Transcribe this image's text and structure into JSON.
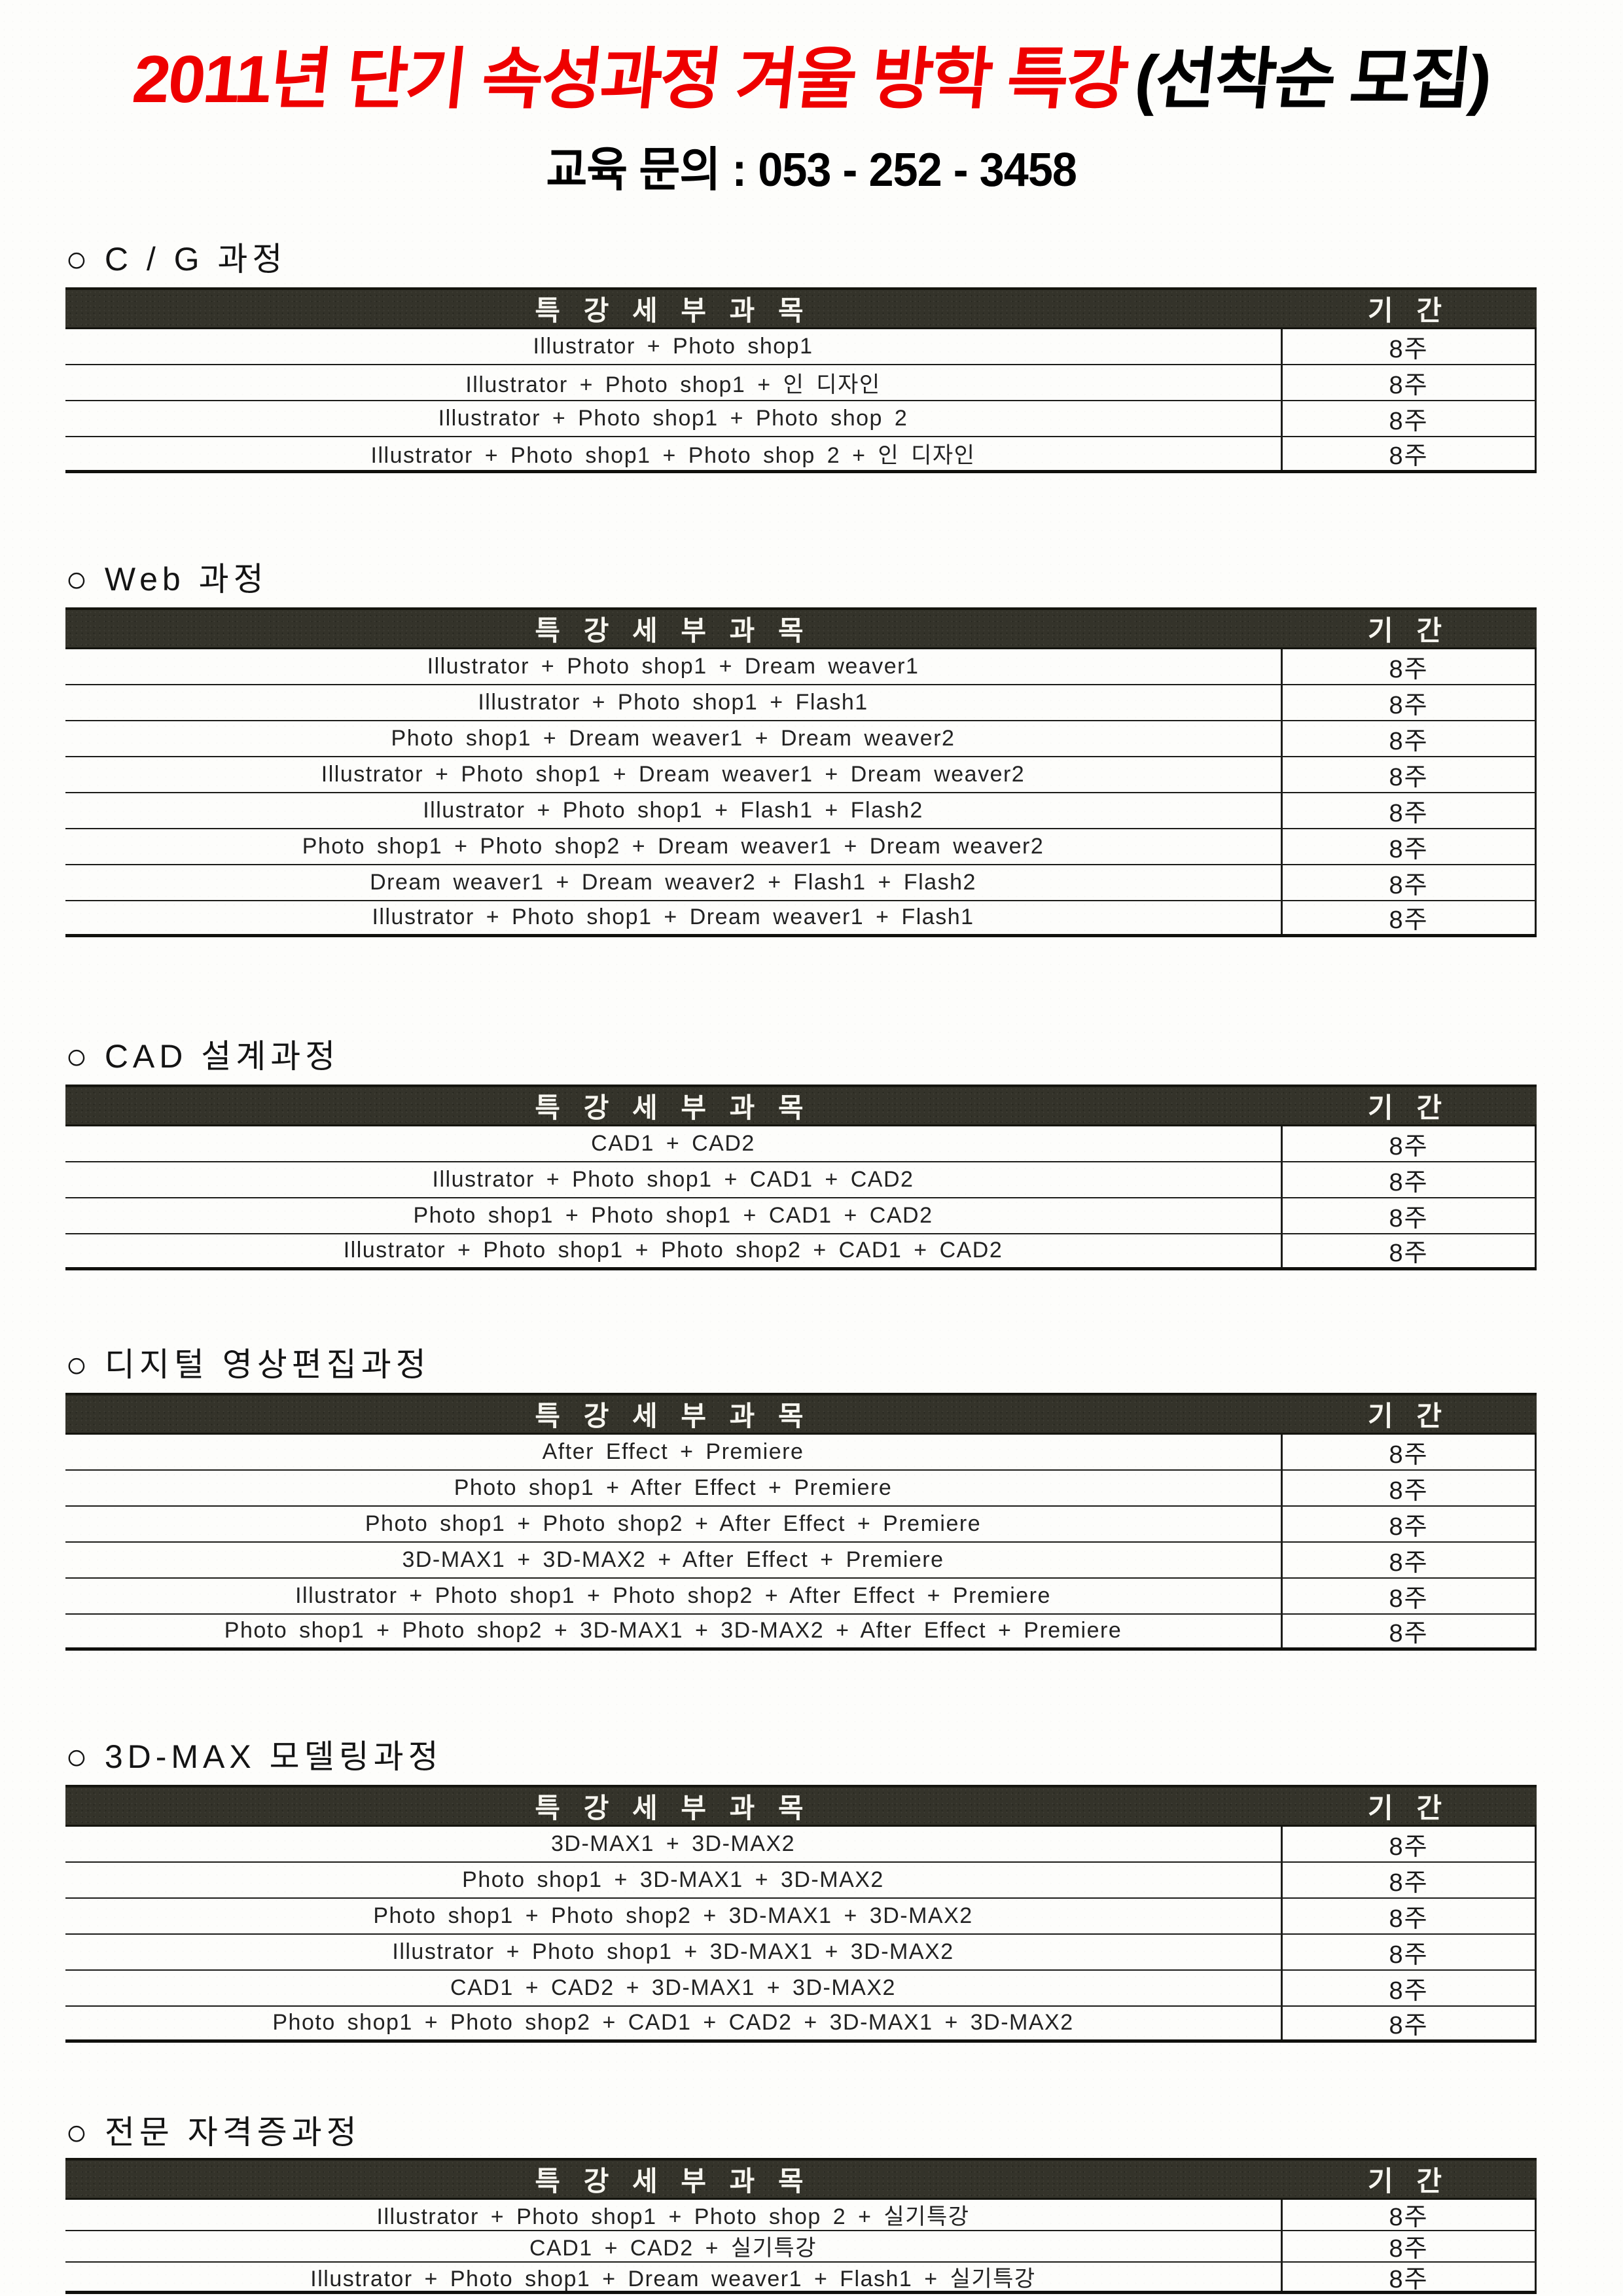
{
  "header": {
    "title_red": "2011년 단기 속성과정 겨울 방학 특강",
    "title_black": "(선착순 모집)",
    "contact": "교육 문의 : 053 - 252 - 3458"
  },
  "columns": {
    "subject": "특 강 세 부 과 목",
    "period": "기 간"
  },
  "colors": {
    "title_red": "#ee0000",
    "header_bar": "#34332a",
    "line": "#1d1d1a"
  },
  "sections": [
    {
      "bullet": "○",
      "title": "C / G 과정",
      "rows": [
        {
          "subject": "Illustrator + Photo shop1",
          "period": "8주"
        },
        {
          "subject": "Illustrator + Photo shop1 + 인 디자인",
          "period": "8주"
        },
        {
          "subject": "Illustrator + Photo shop1 + Photo shop 2",
          "period": "8주"
        },
        {
          "subject": "Illustrator + Photo shop1 + Photo shop 2 + 인 디자인",
          "period": "8주"
        }
      ]
    },
    {
      "bullet": "○",
      "title": "Web 과정",
      "rows": [
        {
          "subject": "Illustrator + Photo shop1 + Dream weaver1",
          "period": "8주"
        },
        {
          "subject": "Illustrator + Photo shop1 + Flash1",
          "period": "8주"
        },
        {
          "subject": "Photo shop1 + Dream weaver1 + Dream weaver2",
          "period": "8주"
        },
        {
          "subject": "Illustrator + Photo shop1 + Dream weaver1 + Dream weaver2",
          "period": "8주"
        },
        {
          "subject": "Illustrator + Photo shop1 + Flash1 + Flash2",
          "period": "8주"
        },
        {
          "subject": "Photo shop1 + Photo shop2 + Dream weaver1 + Dream weaver2",
          "period": "8주"
        },
        {
          "subject": "Dream weaver1 + Dream weaver2 + Flash1 + Flash2",
          "period": "8주"
        },
        {
          "subject": "Illustrator + Photo shop1 + Dream weaver1 + Flash1",
          "period": "8주"
        }
      ]
    },
    {
      "bullet": "○",
      "title": "CAD 설계과정",
      "rows": [
        {
          "subject": "CAD1 + CAD2",
          "period": "8주"
        },
        {
          "subject": "Illustrator + Photo shop1 + CAD1 + CAD2",
          "period": "8주"
        },
        {
          "subject": "Photo shop1 + Photo shop1 + CAD1 + CAD2",
          "period": "8주"
        },
        {
          "subject": "Illustrator + Photo shop1 + Photo shop2 + CAD1 + CAD2",
          "period": "8주"
        }
      ]
    },
    {
      "bullet": "○",
      "title": "디지털 영상편집과정",
      "rows": [
        {
          "subject": "After Effect + Premiere",
          "period": "8주"
        },
        {
          "subject": "Photo shop1 + After Effect + Premiere",
          "period": "8주"
        },
        {
          "subject": "Photo shop1 + Photo shop2 + After Effect + Premiere",
          "period": "8주"
        },
        {
          "subject": "3D-MAX1 + 3D-MAX2 + After Effect + Premiere",
          "period": "8주"
        },
        {
          "subject": "Illustrator + Photo shop1 + Photo shop2 + After Effect + Premiere",
          "period": "8주"
        },
        {
          "subject": "Photo shop1 + Photo shop2 + 3D-MAX1 + 3D-MAX2 + After Effect + Premiere",
          "period": "8주"
        }
      ]
    },
    {
      "bullet": "○",
      "title": "3D-MAX 모델링과정",
      "rows": [
        {
          "subject": "3D-MAX1 + 3D-MAX2",
          "period": "8주"
        },
        {
          "subject": "Photo shop1 + 3D-MAX1 + 3D-MAX2",
          "period": "8주"
        },
        {
          "subject": "Photo shop1 + Photo shop2 + 3D-MAX1 + 3D-MAX2",
          "period": "8주"
        },
        {
          "subject": "Illustrator + Photo shop1 + 3D-MAX1 + 3D-MAX2",
          "period": "8주"
        },
        {
          "subject": "CAD1 + CAD2 + 3D-MAX1 + 3D-MAX2",
          "period": "8주"
        },
        {
          "subject": "Photo shop1 + Photo shop2 + CAD1 + CAD2 + 3D-MAX1 + 3D-MAX2",
          "period": "8주"
        }
      ]
    },
    {
      "bullet": "○",
      "title": "전문 자격증과정",
      "rows": [
        {
          "subject": "Illustrator + Photo shop1 + Photo shop 2 + 실기특강",
          "period": "8주"
        },
        {
          "subject": "CAD1 + CAD2 + 실기특강",
          "period": "8주"
        },
        {
          "subject": "Illustrator + Photo shop1 + Dream weaver1 + Flash1 + 실기특강",
          "period": "8주"
        }
      ]
    }
  ]
}
